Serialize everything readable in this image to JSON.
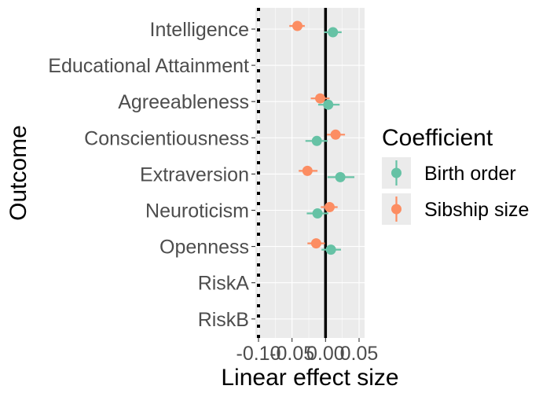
{
  "chart_data": {
    "type": "scatter",
    "subtype": "forest-plot-point-range",
    "xlabel": "Linear effect size",
    "ylabel": "Outcome",
    "xlim": [
      -0.1,
      0.05
    ],
    "x_ticks": [
      -0.1,
      -0.05,
      0.0,
      0.05
    ],
    "x_tick_labels": [
      "-0.10",
      "-0.05",
      "0.00",
      "0.05"
    ],
    "reference_lines": [
      {
        "x": 0.0,
        "style": "solid",
        "color": "#000000"
      },
      {
        "x": -0.1,
        "style": "dotted",
        "color": "#000000"
      }
    ],
    "grid": true,
    "categories": [
      "Intelligence",
      "Educational Attainment",
      "Agreeableness",
      "Conscientiousness",
      "Extraversion",
      "Neuroticism",
      "Openness",
      "RiskA",
      "RiskB"
    ],
    "series": [
      {
        "name": "Birth order",
        "color": "#66c2a5",
        "points": [
          {
            "category": "Intelligence",
            "estimate": 0.011,
            "lower": -0.002,
            "upper": 0.024
          },
          {
            "category": "Agreeableness",
            "estimate": 0.004,
            "lower": -0.011,
            "upper": 0.021
          },
          {
            "category": "Conscientiousness",
            "estimate": -0.013,
            "lower": -0.03,
            "upper": 0.003
          },
          {
            "category": "Extraversion",
            "estimate": 0.022,
            "lower": 0.003,
            "upper": 0.043
          },
          {
            "category": "Neuroticism",
            "estimate": -0.012,
            "lower": -0.028,
            "upper": 0.004
          },
          {
            "category": "Openness",
            "estimate": 0.008,
            "lower": -0.006,
            "upper": 0.023
          }
        ]
      },
      {
        "name": "Sibship size",
        "color": "#fc8d62",
        "points": [
          {
            "category": "Intelligence",
            "estimate": -0.042,
            "lower": -0.054,
            "upper": -0.031
          },
          {
            "category": "Agreeableness",
            "estimate": -0.008,
            "lower": -0.022,
            "upper": 0.006
          },
          {
            "category": "Conscientiousness",
            "estimate": 0.015,
            "lower": 0.002,
            "upper": 0.029
          },
          {
            "category": "Extraversion",
            "estimate": -0.027,
            "lower": -0.04,
            "upper": -0.012
          },
          {
            "category": "Neuroticism",
            "estimate": 0.006,
            "lower": -0.007,
            "upper": 0.018
          },
          {
            "category": "Openness",
            "estimate": -0.014,
            "lower": -0.027,
            "upper": -0.001
          }
        ]
      }
    ],
    "legend": {
      "title": "Coefficient",
      "placement": "right",
      "entries": [
        "Birth order",
        "Sibship size"
      ]
    }
  },
  "colors": {
    "panel_background": "#ebebeb",
    "grid_major": "#ffffff",
    "reference_line": "#000000"
  }
}
